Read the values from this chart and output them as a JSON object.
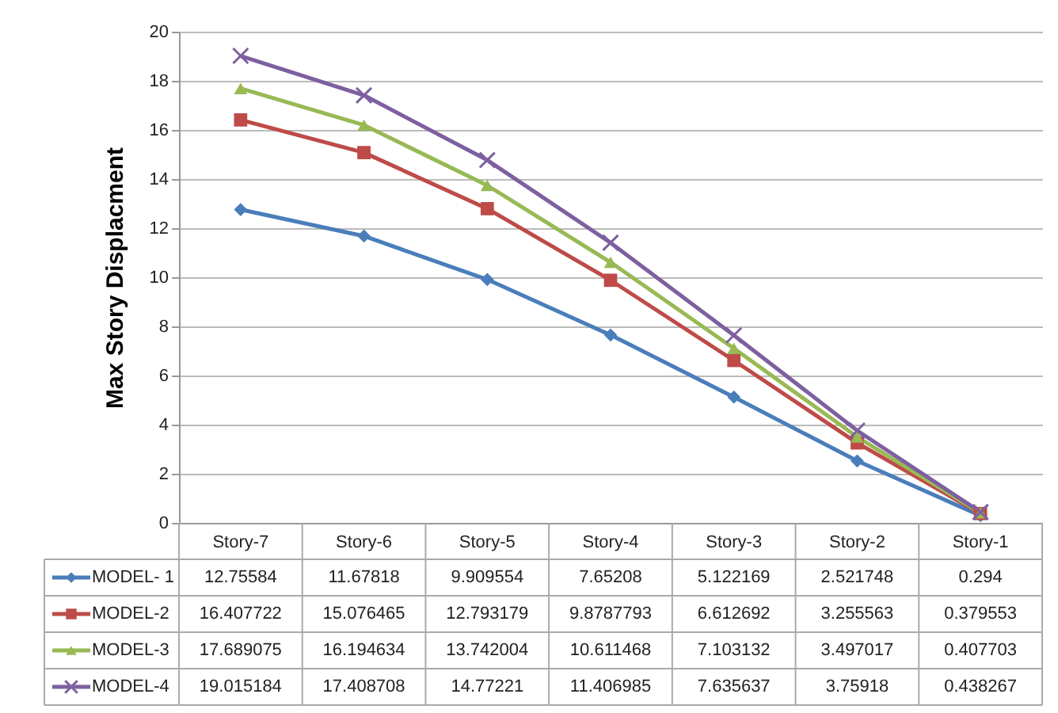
{
  "chart_data": {
    "type": "line",
    "ylabel": "Max Story Displacment",
    "categories": [
      "Story-7",
      "Story-6",
      "Story-5",
      "Story-4",
      "Story-3",
      "Story-2",
      "Story-1"
    ],
    "ylim": [
      0,
      20
    ],
    "yticks": [
      0,
      2,
      4,
      6,
      8,
      10,
      12,
      14,
      16,
      18,
      20
    ],
    "grid": "y",
    "data_labels": true,
    "legend": "bottom left",
    "series": [
      {
        "name": "MODEL- 1",
        "color": "#4a7ebb",
        "marker": "diamond",
        "values": [
          12.75584,
          11.67818,
          9.909554,
          7.65208,
          5.122169,
          2.521748,
          0.294
        ]
      },
      {
        "name": "MODEL-2",
        "color": "#be4b48",
        "marker": "square",
        "values": [
          16.407722,
          15.076465,
          12.793179,
          9.8787793,
          6.612692,
          3.255563,
          0.379553
        ]
      },
      {
        "name": "MODEL-3",
        "color": "#98b954",
        "marker": "triangle",
        "values": [
          17.689075,
          16.194634,
          13.742004,
          10.611468,
          7.103132,
          3.497017,
          0.407703
        ]
      },
      {
        "name": "MODEL-4",
        "color": "#7d60a0",
        "marker": "cross",
        "values": [
          19.015184,
          17.408708,
          14.77221,
          11.406985,
          7.635637,
          3.75918,
          0.438267
        ]
      }
    ]
  }
}
